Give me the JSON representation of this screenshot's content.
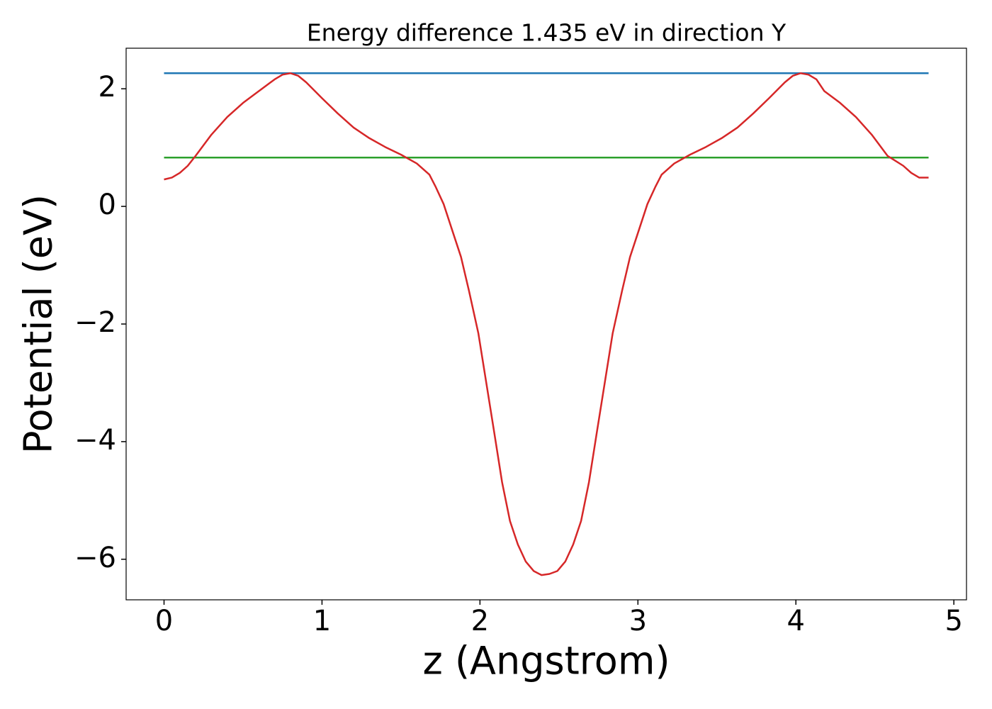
{
  "chart_data": {
    "type": "line",
    "title": "Energy difference 1.435 eV in direction Y",
    "xlabel": "z (Angstrom)",
    "ylabel": "Potential (eV)",
    "xlim": [
      -0.24,
      5.08
    ],
    "ylim": [
      -6.69,
      2.69
    ],
    "xticks": [
      0,
      1,
      2,
      3,
      4,
      5
    ],
    "yticks": [
      {
        "value": -6,
        "label": "−6"
      },
      {
        "value": -4,
        "label": "−4"
      },
      {
        "value": -2,
        "label": "−2"
      },
      0,
      2
    ],
    "grid": false,
    "series": [
      {
        "color": "#d62728",
        "x": [
          0,
          0.05,
          0.1,
          0.15,
          0.2,
          0.3,
          0.4,
          0.5,
          0.6,
          0.7,
          0.75,
          0.8,
          0.85,
          0.9,
          1.0,
          1.1,
          1.2,
          1.3,
          1.4,
          1.5,
          1.6,
          1.68,
          1.72,
          1.77,
          1.82,
          1.88,
          1.93,
          1.99,
          2.04,
          2.09,
          2.14,
          2.19,
          2.24,
          2.29,
          2.34,
          2.39,
          2.44,
          2.49,
          2.54,
          2.59,
          2.64,
          2.69,
          2.74,
          2.79,
          2.84,
          2.9,
          2.95,
          3.01,
          3.06,
          3.11,
          3.15,
          3.23,
          3.33,
          3.43,
          3.53,
          3.63,
          3.73,
          3.83,
          3.93,
          3.98,
          4.03,
          4.08,
          4.13,
          4.18,
          4.28,
          4.38,
          4.48,
          4.58,
          4.68,
          4.73,
          4.78,
          4.84
        ],
        "values": [
          0.458,
          0.49,
          0.57,
          0.69,
          0.86,
          1.22,
          1.52,
          1.76,
          1.96,
          2.16,
          2.24,
          2.265,
          2.22,
          2.11,
          1.84,
          1.58,
          1.34,
          1.16,
          1.01,
          0.88,
          0.73,
          0.54,
          0.33,
          0.04,
          -0.37,
          -0.86,
          -1.43,
          -2.16,
          -3.0,
          -3.84,
          -4.69,
          -5.35,
          -5.75,
          -6.04,
          -6.2,
          -6.27,
          -6.25,
          -6.2,
          -6.04,
          -5.75,
          -5.35,
          -4.69,
          -3.84,
          -3.0,
          -2.16,
          -1.43,
          -0.86,
          -0.37,
          0.04,
          0.33,
          0.54,
          0.73,
          0.88,
          1.01,
          1.16,
          1.34,
          1.58,
          1.84,
          2.11,
          2.22,
          2.265,
          2.24,
          2.16,
          1.96,
          1.76,
          1.52,
          1.22,
          0.86,
          0.69,
          0.57,
          0.49,
          0.49
        ]
      },
      {
        "color": "#1f77b4",
        "x": [
          0,
          4.84
        ],
        "values": [
          2.265,
          2.265
        ]
      },
      {
        "color": "#2ca02c",
        "x": [
          0,
          4.84
        ],
        "values": [
          0.83,
          0.83
        ]
      }
    ]
  }
}
